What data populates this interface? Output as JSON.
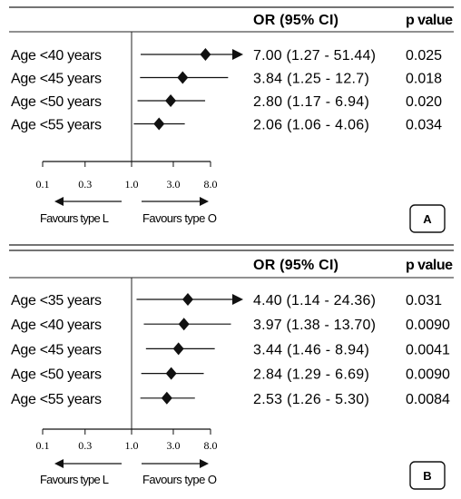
{
  "chart_data": [
    {
      "type": "forest",
      "panel_label": "A",
      "col_headers": {
        "or": "OR (95% CI)",
        "p": "p value"
      },
      "axis": {
        "scale": "log",
        "range": [
          0.1,
          8.0
        ],
        "ticks": [
          "0.1",
          "0.3",
          "1.0",
          "3.0",
          "8.0"
        ],
        "ref_value": 1.0
      },
      "favours": {
        "left": "Favours type L",
        "right": "Favours type O"
      },
      "rows": [
        {
          "label": "Age <40 years",
          "or": 7.0,
          "lo": 1.27,
          "hi": 51.44,
          "ci_text": "7.00 (1.27 - 51.44)",
          "p": "0.025",
          "arrow_right": true
        },
        {
          "label": "Age <45 years",
          "or": 3.84,
          "lo": 1.25,
          "hi": 12.7,
          "ci_text": "3.84 (1.25 - 12.7)",
          "p": "0.018",
          "arrow_right": false
        },
        {
          "label": "Age <50 years",
          "or": 2.8,
          "lo": 1.17,
          "hi": 6.94,
          "ci_text": "2.80 (1.17 - 6.94)",
          "p": "0.020",
          "arrow_right": false
        },
        {
          "label": "Age <55 years",
          "or": 2.06,
          "lo": 1.06,
          "hi": 4.06,
          "ci_text": "2.06 (1.06 - 4.06)",
          "p": "0.034",
          "arrow_right": false
        }
      ]
    },
    {
      "type": "forest",
      "panel_label": "B",
      "col_headers": {
        "or": "OR (95% CI)",
        "p": "p value"
      },
      "axis": {
        "scale": "log",
        "range": [
          0.1,
          8.0
        ],
        "ticks": [
          "0.1",
          "0.3",
          "1.0",
          "3.0",
          "8.0"
        ],
        "ref_value": 1.0
      },
      "favours": {
        "left": "Favours type L",
        "right": "Favours type O"
      },
      "rows": [
        {
          "label": "Age <35 years",
          "or": 4.4,
          "lo": 1.14,
          "hi": 24.36,
          "ci_text": "4.40 (1.14 - 24.36)",
          "p": "0.031",
          "arrow_right": true
        },
        {
          "label": "Age <40 years",
          "or": 3.97,
          "lo": 1.38,
          "hi": 13.7,
          "ci_text": "3.97 (1.38 - 13.70)",
          "p": "0.0090",
          "arrow_right": false
        },
        {
          "label": "Age <45 years",
          "or": 3.44,
          "lo": 1.46,
          "hi": 8.94,
          "ci_text": "3.44 (1.46 - 8.94)",
          "p": "0.0041",
          "arrow_right": false
        },
        {
          "label": "Age <50 years",
          "or": 2.84,
          "lo": 1.29,
          "hi": 6.69,
          "ci_text": "2.84 (1.29 - 6.69)",
          "p": "0.0090",
          "arrow_right": false
        },
        {
          "label": "Age <55 years",
          "or": 2.53,
          "lo": 1.26,
          "hi": 5.3,
          "ci_text": "2.53 (1.26 - 5.30)",
          "p": "0.0084",
          "arrow_right": false
        }
      ]
    }
  ]
}
